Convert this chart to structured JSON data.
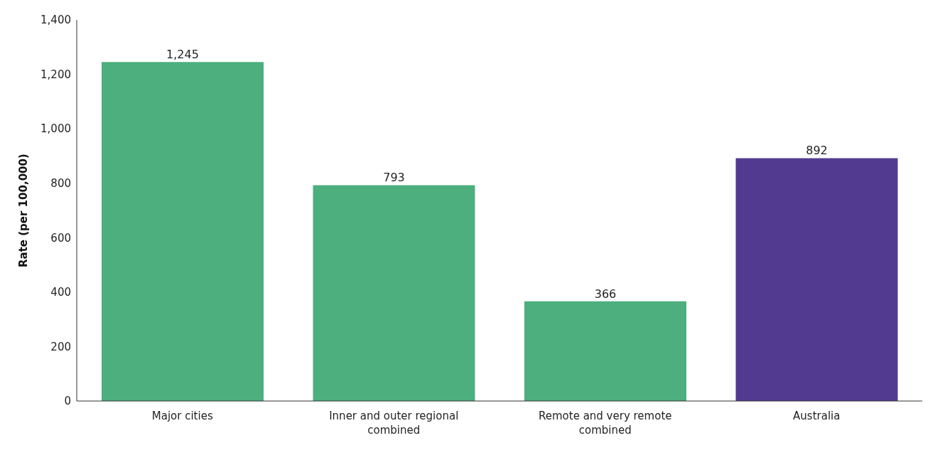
{
  "chart_data": {
    "type": "bar",
    "ylabel": "Rate (per 100,000)",
    "categories": [
      "Major cities",
      "Inner and outer regional combined",
      "Remote and very remote combined",
      "Australia"
    ],
    "values": [
      1245,
      793,
      366,
      892
    ],
    "colors": [
      "#4caf7d",
      "#4caf7d",
      "#4caf7d",
      "#523a91"
    ],
    "ylim": [
      0,
      1400
    ],
    "yticks": [
      0,
      {
        "value": 200,
        "label": "200"
      },
      {
        "value": 400,
        "label": "400"
      },
      {
        "value": 600,
        "label": "600"
      },
      {
        "value": 800,
        "label": "800"
      },
      {
        "value": 1000,
        "label": "1,000"
      },
      {
        "value": 1200,
        "label": "1,200"
      },
      {
        "value": 1400,
        "label": "1,400"
      }
    ],
    "grid": false,
    "value_labels": [
      "1,245",
      "793",
      "366",
      "892"
    ]
  }
}
